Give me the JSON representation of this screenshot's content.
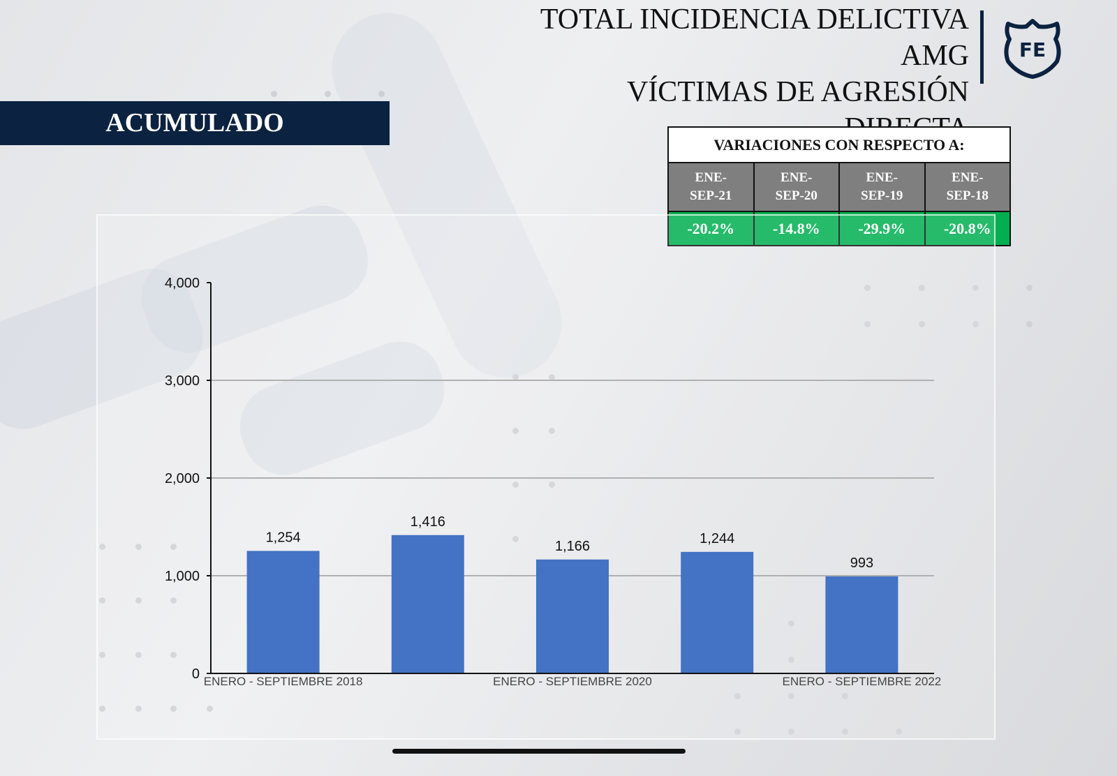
{
  "header": {
    "title_lines": [
      "TOTAL INCIDENCIA DELICTIVA",
      "AMG",
      "VÍCTIMAS DE AGRESIÓN",
      "DIRECTA"
    ],
    "logo_text": "FE",
    "brand_color": "#0b2240"
  },
  "banner": {
    "label": "ACUMULADO"
  },
  "variations": {
    "title": "VARIACIONES CON RESPECTO A:",
    "periods": [
      "ENE-\nSEP-21",
      "ENE-\nSEP-20",
      "ENE-\nSEP-19",
      "ENE-\nSEP-18"
    ],
    "values": [
      "-20.2%",
      "-14.8%",
      "-29.9%",
      "-20.8%"
    ],
    "header_color": "#7f7f7f",
    "value_color": "#00b050"
  },
  "chart_data": {
    "type": "bar",
    "categories": [
      "ENERO - SEPTIEMBRE 2018",
      "",
      "ENERO - SEPTIEMBRE 2020",
      "",
      "ENERO - SEPTIEMBRE 2022"
    ],
    "values": [
      1254,
      1416,
      1166,
      1244,
      993
    ],
    "data_labels": [
      "1,254",
      "1,416",
      "1,166",
      "1,244",
      "993"
    ],
    "yticks": [
      0,
      1000,
      2000,
      3000,
      4000
    ],
    "ytick_labels": [
      "0",
      "1,000",
      "2,000",
      "3,000",
      "4,000"
    ],
    "ylim": [
      0,
      4000
    ],
    "grid": true,
    "bar_color": "#4472c4"
  }
}
